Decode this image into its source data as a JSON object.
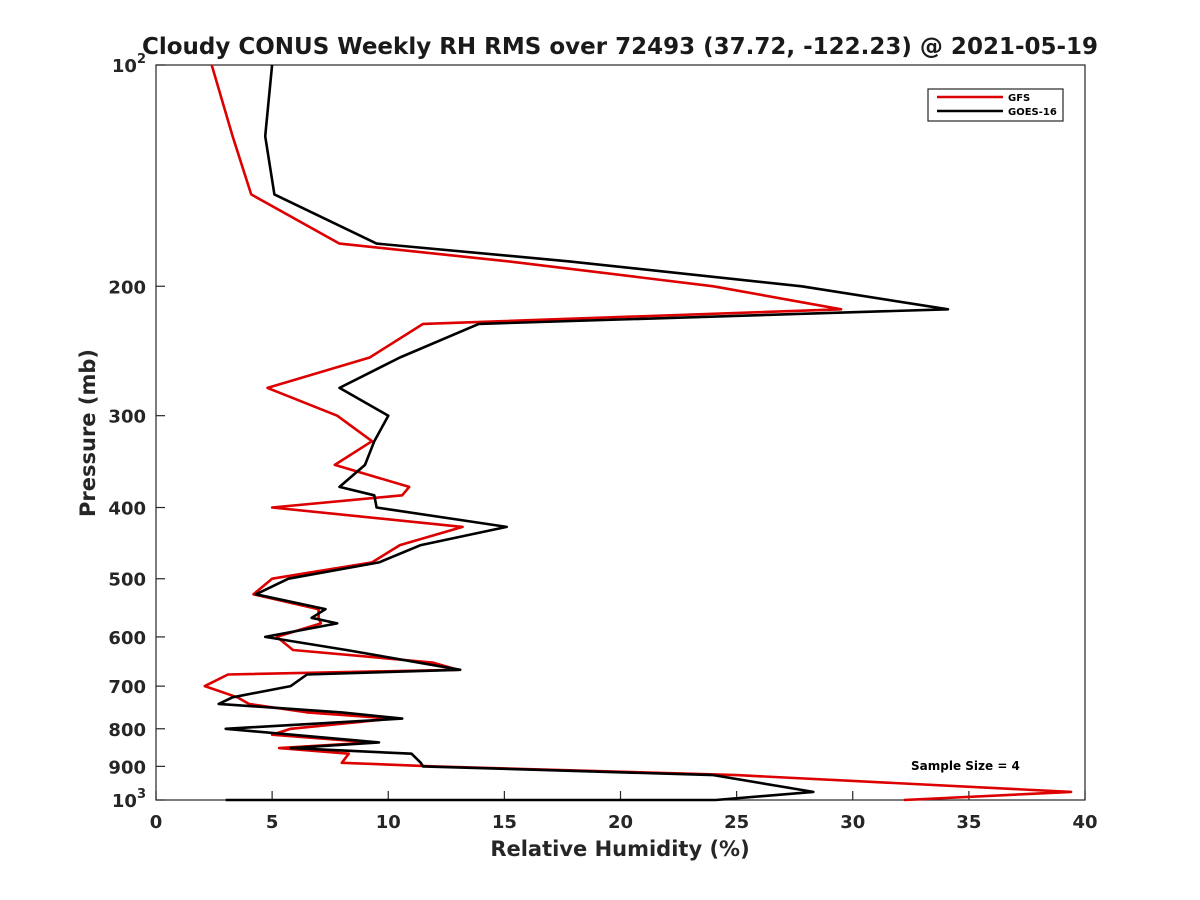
{
  "chart_data": {
    "type": "line",
    "title": "Cloudy CONUS Weekly RH RMS over 72493 (37.72, -122.23) @ 2021-05-19",
    "xlabel": "Relative Humidity (%)",
    "ylabel": "Pressure (mb)",
    "xlim": [
      0,
      40
    ],
    "ylim": [
      1000,
      100
    ],
    "yscale": "log",
    "y_reversed": true,
    "grid": false,
    "legend_position": "top-right",
    "x_ticks": [
      "0",
      "5",
      "10",
      "15",
      "20",
      "25",
      "30",
      "35",
      "40"
    ],
    "x_tick_values": [
      0,
      5,
      10,
      15,
      20,
      25,
      30,
      35,
      40
    ],
    "y_ticks": [
      {
        "value": 100,
        "base": "10",
        "exp": "2"
      },
      {
        "value": 200,
        "label": "200"
      },
      {
        "value": 300,
        "label": "300"
      },
      {
        "value": 400,
        "label": "400"
      },
      {
        "value": 500,
        "label": "500"
      },
      {
        "value": 600,
        "label": "600"
      },
      {
        "value": 700,
        "label": "700"
      },
      {
        "value": 800,
        "label": "800"
      },
      {
        "value": 900,
        "label": "900"
      },
      {
        "value": 1000,
        "base": "10",
        "exp": "3"
      }
    ],
    "annotation": "Sample Size = 4",
    "series": [
      {
        "name": "GFS",
        "color": "#dd0000",
        "points": [
          {
            "x": 2.4,
            "y": 100
          },
          {
            "x": 3.3,
            "y": 125
          },
          {
            "x": 4.1,
            "y": 150
          },
          {
            "x": 7.9,
            "y": 175
          },
          {
            "x": 15.2,
            "y": 185
          },
          {
            "x": 24.0,
            "y": 200
          },
          {
            "x": 29.5,
            "y": 215
          },
          {
            "x": 11.5,
            "y": 225
          },
          {
            "x": 9.2,
            "y": 250
          },
          {
            "x": 4.8,
            "y": 275
          },
          {
            "x": 7.8,
            "y": 300
          },
          {
            "x": 9.3,
            "y": 325
          },
          {
            "x": 7.7,
            "y": 350
          },
          {
            "x": 10.9,
            "y": 375
          },
          {
            "x": 10.6,
            "y": 385
          },
          {
            "x": 5.0,
            "y": 400
          },
          {
            "x": 13.2,
            "y": 425
          },
          {
            "x": 10.5,
            "y": 450
          },
          {
            "x": 9.3,
            "y": 475
          },
          {
            "x": 5.0,
            "y": 500
          },
          {
            "x": 4.2,
            "y": 525
          },
          {
            "x": 7.0,
            "y": 550
          },
          {
            "x": 7.0,
            "y": 565
          },
          {
            "x": 7.1,
            "y": 575
          },
          {
            "x": 5.2,
            "y": 600
          },
          {
            "x": 5.9,
            "y": 625
          },
          {
            "x": 11.9,
            "y": 650
          },
          {
            "x": 13.0,
            "y": 665
          },
          {
            "x": 3.1,
            "y": 675
          },
          {
            "x": 2.1,
            "y": 700
          },
          {
            "x": 3.5,
            "y": 725
          },
          {
            "x": 4.0,
            "y": 740
          },
          {
            "x": 6.5,
            "y": 760
          },
          {
            "x": 10.2,
            "y": 775
          },
          {
            "x": 5.8,
            "y": 800
          },
          {
            "x": 5.0,
            "y": 815
          },
          {
            "x": 9.3,
            "y": 835
          },
          {
            "x": 5.3,
            "y": 850
          },
          {
            "x": 8.3,
            "y": 865
          },
          {
            "x": 8.0,
            "y": 890
          },
          {
            "x": 12.0,
            "y": 900
          },
          {
            "x": 25.0,
            "y": 925
          },
          {
            "x": 39.4,
            "y": 975
          },
          {
            "x": 32.2,
            "y": 1000
          }
        ]
      },
      {
        "name": "GOES-16",
        "color": "#000000",
        "points": [
          {
            "x": 5.0,
            "y": 100
          },
          {
            "x": 4.7,
            "y": 125
          },
          {
            "x": 5.1,
            "y": 150
          },
          {
            "x": 9.5,
            "y": 175
          },
          {
            "x": 17.8,
            "y": 185
          },
          {
            "x": 27.8,
            "y": 200
          },
          {
            "x": 34.1,
            "y": 215
          },
          {
            "x": 13.9,
            "y": 225
          },
          {
            "x": 10.5,
            "y": 250
          },
          {
            "x": 7.9,
            "y": 275
          },
          {
            "x": 10.0,
            "y": 300
          },
          {
            "x": 9.4,
            "y": 325
          },
          {
            "x": 9.0,
            "y": 350
          },
          {
            "x": 7.9,
            "y": 375
          },
          {
            "x": 9.4,
            "y": 385
          },
          {
            "x": 9.5,
            "y": 400
          },
          {
            "x": 15.1,
            "y": 425
          },
          {
            "x": 11.4,
            "y": 450
          },
          {
            "x": 9.6,
            "y": 475
          },
          {
            "x": 5.7,
            "y": 500
          },
          {
            "x": 4.3,
            "y": 525
          },
          {
            "x": 7.3,
            "y": 550
          },
          {
            "x": 6.7,
            "y": 565
          },
          {
            "x": 7.8,
            "y": 575
          },
          {
            "x": 4.7,
            "y": 600
          },
          {
            "x": 8.2,
            "y": 625
          },
          {
            "x": 13.1,
            "y": 665
          },
          {
            "x": 6.5,
            "y": 675
          },
          {
            "x": 5.8,
            "y": 700
          },
          {
            "x": 3.3,
            "y": 725
          },
          {
            "x": 2.7,
            "y": 740
          },
          {
            "x": 8.0,
            "y": 760
          },
          {
            "x": 10.6,
            "y": 775
          },
          {
            "x": 3.0,
            "y": 800
          },
          {
            "x": 9.6,
            "y": 835
          },
          {
            "x": 5.8,
            "y": 850
          },
          {
            "x": 11.0,
            "y": 865
          },
          {
            "x": 11.4,
            "y": 890
          },
          {
            "x": 11.5,
            "y": 900
          },
          {
            "x": 24.0,
            "y": 925
          },
          {
            "x": 28.3,
            "y": 975
          },
          {
            "x": 24.1,
            "y": 1000
          },
          {
            "x": 3.0,
            "y": 1000
          }
        ]
      }
    ]
  }
}
